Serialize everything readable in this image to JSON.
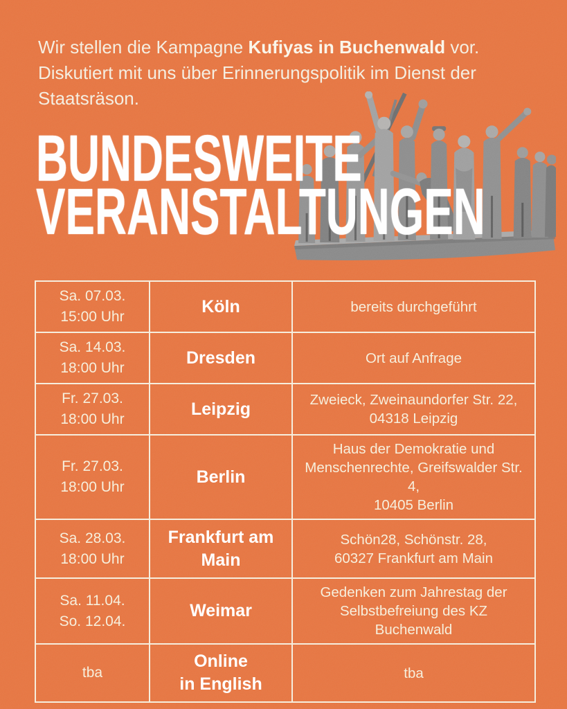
{
  "colors": {
    "background": "#E5703A",
    "cream": "#F5EDDC",
    "white": "#FFFFFF"
  },
  "intro": {
    "line1_pre": "Wir stellen die Kampagne ",
    "line1_bold": "Kufiyas in Buchenwald",
    "line1_post": " vor.",
    "line2": "Diskutiert mit uns über Erinnerungspolitik im Dienst der",
    "line3": "Staatsräson."
  },
  "heading": {
    "line1": "BUNDESWEITE",
    "line2": "VERANSTALTUNGEN"
  },
  "statue_icon": "buchenwald-memorial-sculpture",
  "table": {
    "rows": [
      {
        "date": [
          "Sa. 07.03.",
          "15:00 Uhr"
        ],
        "city": [
          "Köln"
        ],
        "info": [
          "bereits durchgeführt"
        ]
      },
      {
        "date": [
          "Sa. 14.03.",
          "18:00 Uhr"
        ],
        "city": [
          "Dresden"
        ],
        "info": [
          "Ort auf Anfrage"
        ]
      },
      {
        "date": [
          "Fr. 27.03.",
          "18:00 Uhr"
        ],
        "city": [
          "Leipzig"
        ],
        "info": [
          "Zweieck, Zweinaundorfer Str. 22,",
          "04318 Leipzig"
        ]
      },
      {
        "date": [
          "Fr. 27.03.",
          "18:00 Uhr"
        ],
        "city": [
          "Berlin"
        ],
        "info": [
          "Haus der Demokratie und",
          "Menschenrechte, Greifswalder Str. 4,",
          "10405 Berlin"
        ]
      },
      {
        "date": [
          "Sa. 28.03.",
          "18:00 Uhr"
        ],
        "city": [
          "Frankfurt am",
          "Main"
        ],
        "info": [
          "Schön28, Schönstr. 28,",
          "60327 Frankfurt am Main"
        ]
      },
      {
        "date": [
          "Sa. 11.04.",
          "So. 12.04."
        ],
        "city": [
          "Weimar"
        ],
        "info": [
          "Gedenken zum Jahrestag der",
          "Selbstbefreiung des KZ  Buchenwald"
        ]
      },
      {
        "date": [
          "tba"
        ],
        "city": [
          "Online",
          "in English"
        ],
        "info": [
          "tba"
        ]
      }
    ]
  }
}
